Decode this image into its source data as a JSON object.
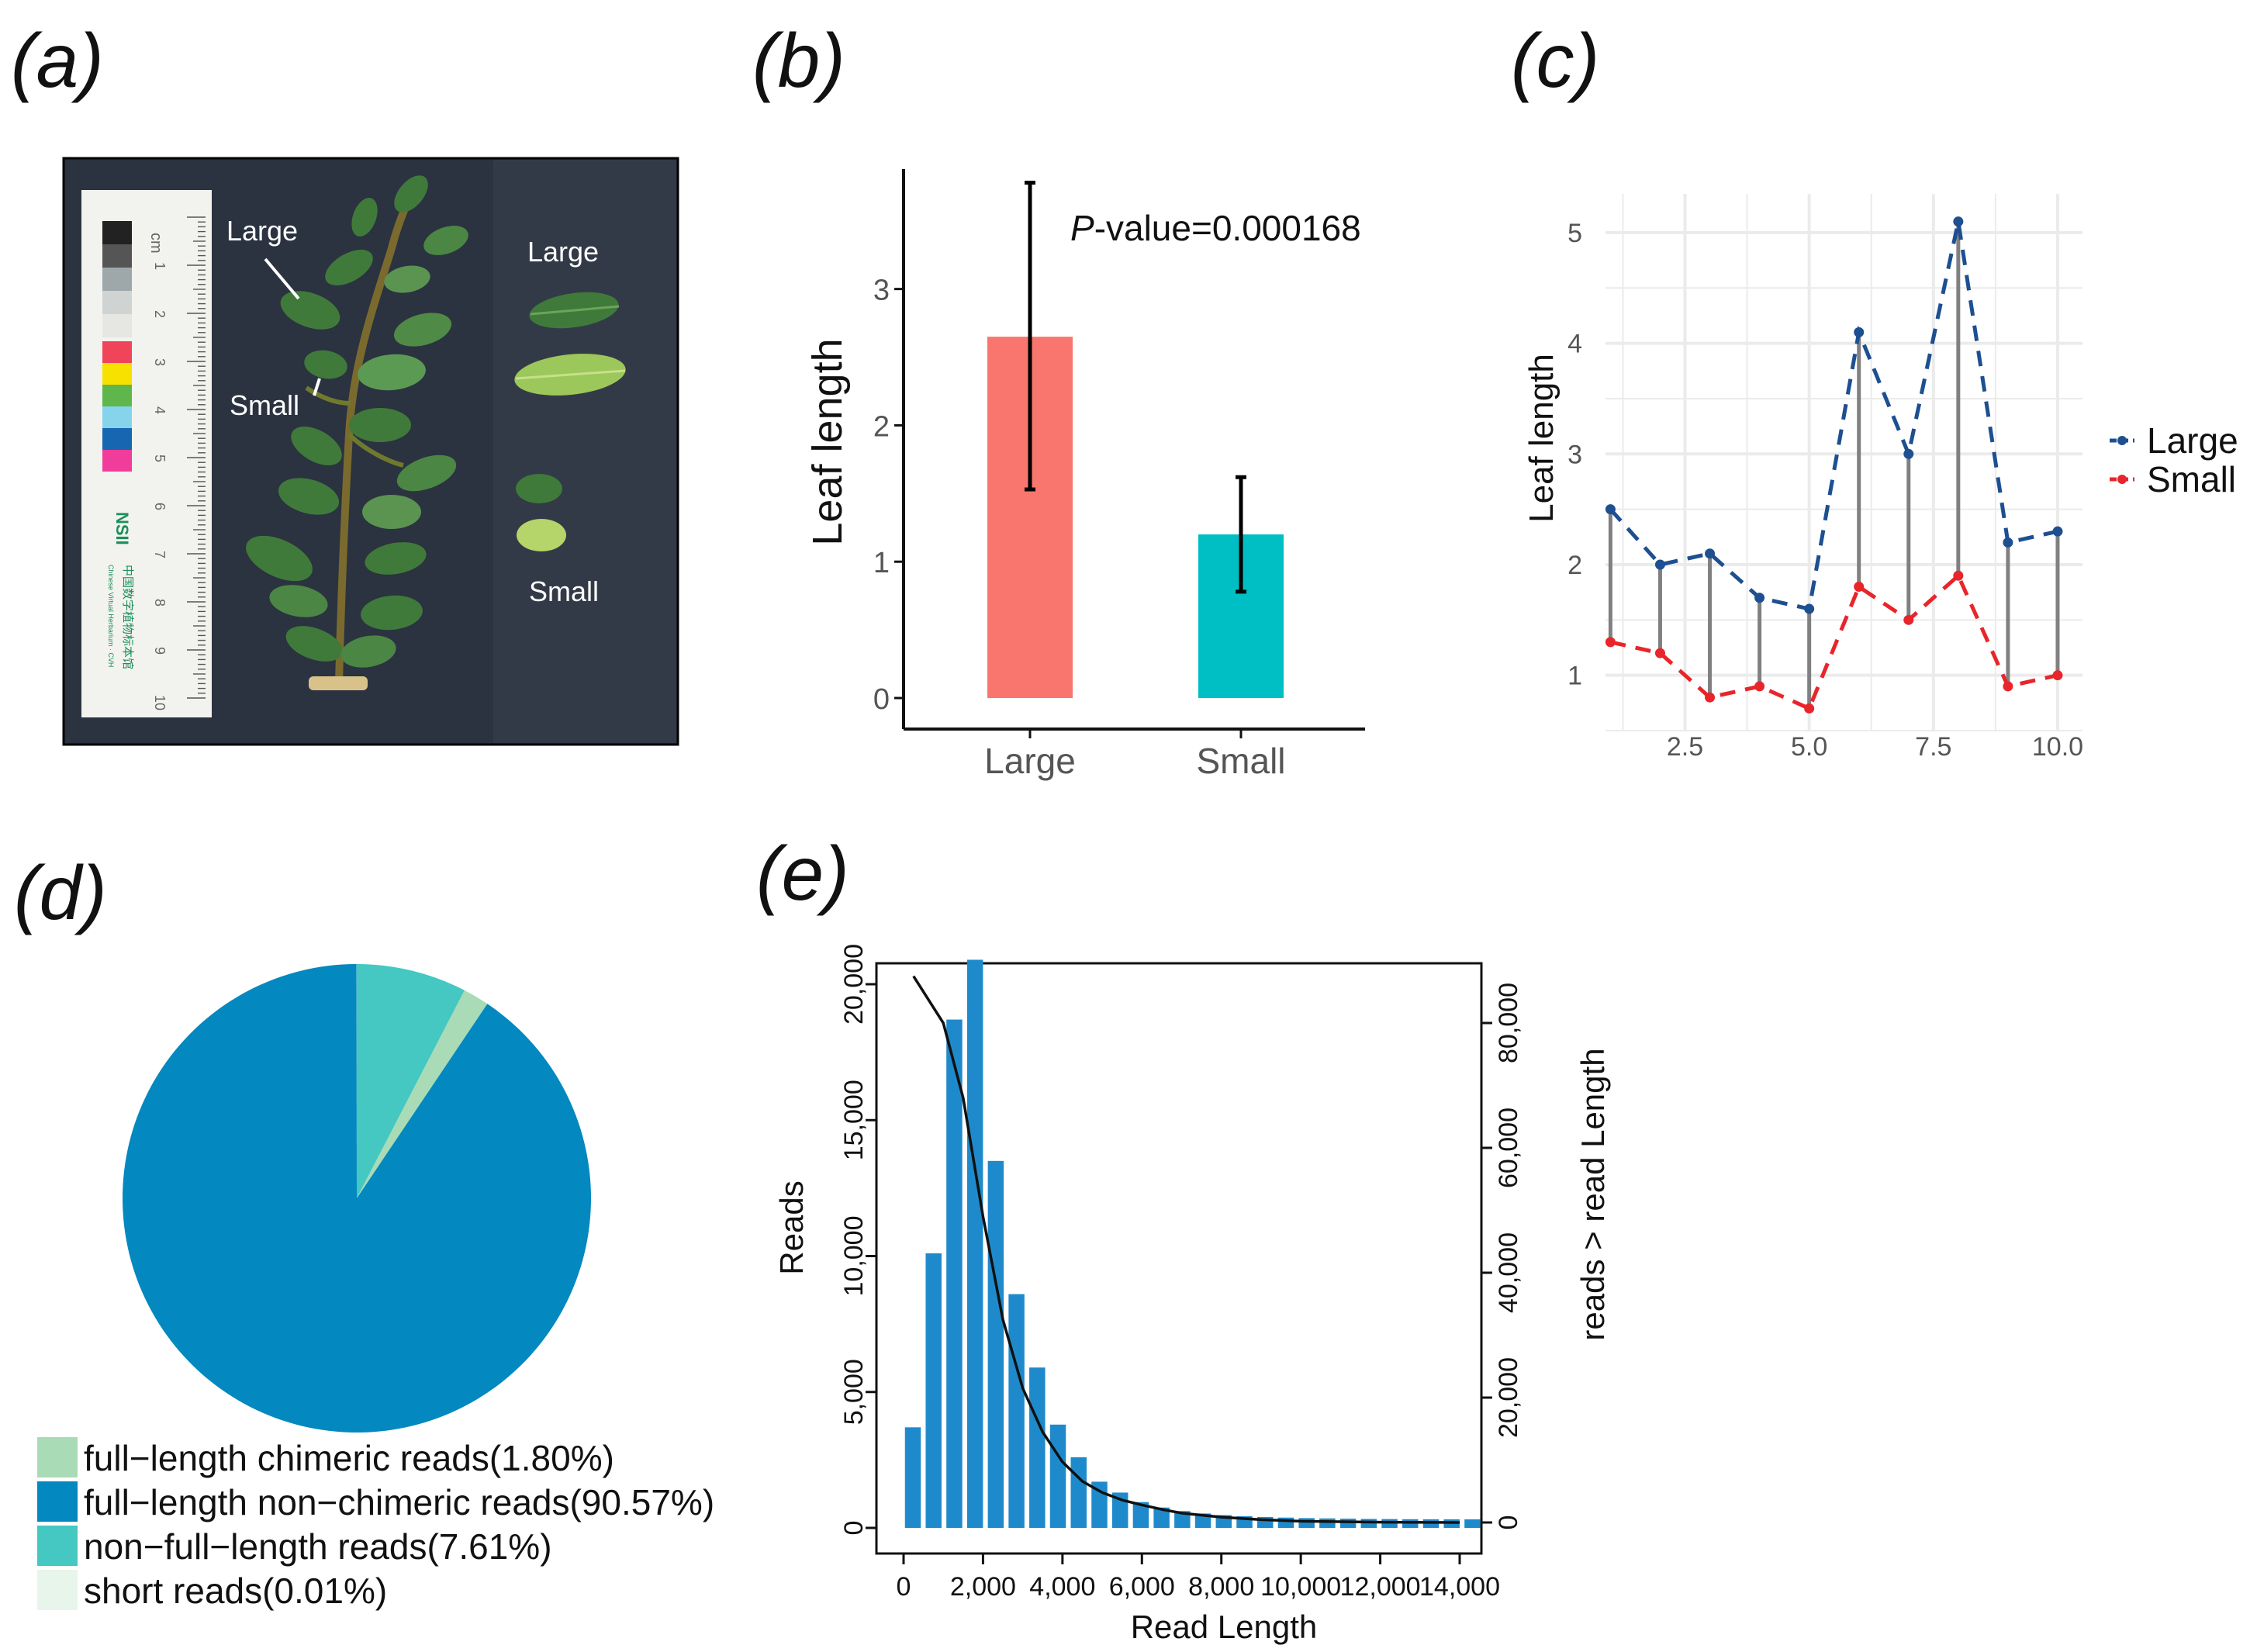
{
  "panel_labels": [
    "(a)",
    "(b)",
    "(c)",
    "(d)",
    "(e)"
  ],
  "photo": {
    "labels": [
      "Large",
      "Small",
      "Large",
      "Small"
    ],
    "ruler_unit": "cm",
    "ruler_numbers": [
      "1",
      "2",
      "3",
      "4",
      "5",
      "6",
      "7",
      "8",
      "9",
      "10"
    ],
    "ruler_logo": "NSII",
    "ruler_text": "中国数字植物标本馆",
    "ruler_subtext": "Chinese Virtual Herbarium · CVH",
    "colors": {
      "background": "#2b3240",
      "leaf": "#3f7a3a",
      "leaf_light": "#9cc75a",
      "stem": "#7a5a2a"
    }
  },
  "chart_data": [
    {
      "id": "b",
      "type": "bar",
      "categories": [
        "Large",
        "Small"
      ],
      "values": [
        2.65,
        1.2
      ],
      "error_low": [
        1.53,
        0.78
      ],
      "error_high": [
        3.78,
        1.62
      ],
      "colors": [
        "#f8766d",
        "#00bfc4"
      ],
      "ylabel": "Leaf length",
      "ylim": [
        0,
        3.95
      ],
      "yticks": [
        "0",
        "1",
        "2",
        "3"
      ],
      "annotation_italic": "P",
      "annotation_rest": "-value=0.000168"
    },
    {
      "id": "c",
      "type": "line",
      "x": [
        1,
        2,
        3,
        4,
        5,
        6,
        7,
        8,
        9,
        10
      ],
      "series": [
        {
          "name": "Large",
          "values": [
            2.5,
            2.0,
            2.1,
            1.7,
            1.6,
            4.1,
            3.0,
            5.1,
            2.2,
            2.3
          ],
          "color": "#1d4f91"
        },
        {
          "name": "Small",
          "values": [
            1.3,
            1.2,
            0.8,
            0.9,
            0.7,
            1.8,
            1.5,
            1.9,
            0.9,
            1.0
          ],
          "color": "#e8252a"
        }
      ],
      "ylabel": "Leaf length",
      "xlim": [
        0.9,
        10.5
      ],
      "ylim": [
        0.5,
        5.35
      ],
      "xticks": [
        "2.5",
        "5.0",
        "7.5",
        "10.0"
      ],
      "yticks": [
        "1",
        "2",
        "3",
        "4",
        "5"
      ],
      "segment_color": "#808080",
      "grid": true
    },
    {
      "id": "d",
      "type": "pie",
      "slices": [
        {
          "label": "non−full−length reads(7.61%)",
          "value": 7.61,
          "color": "#45c7c2"
        },
        {
          "label": "full−length chimeric reads(1.80%)",
          "value": 1.8,
          "color": "#a9dbb6"
        },
        {
          "label": "full−length non−chimeric reads(90.57%)",
          "value": 90.57,
          "color": "#0388bf"
        },
        {
          "label": "short reads(0.01%)",
          "value": 0.01,
          "color": "#e8f5ea"
        }
      ],
      "legend": [
        {
          "label": "full−length chimeric reads(1.80%)",
          "color": "#a9dbb6"
        },
        {
          "label": "full−length non−chimeric reads(90.57%)",
          "color": "#0388bf"
        },
        {
          "label": "non−full−length reads(7.61%)",
          "color": "#45c7c2"
        },
        {
          "label": "short reads(0.01%)",
          "color": "#e8f5ea"
        }
      ]
    },
    {
      "id": "e",
      "type": "bar",
      "bins": [
        500,
        1000,
        1500,
        2000,
        2500,
        3000,
        3500,
        4000,
        4500,
        5000,
        5500,
        6000,
        6500,
        7000,
        7500,
        8000,
        8500,
        9000,
        9500,
        10000,
        10500,
        11000,
        11500,
        12000,
        12500,
        13000,
        13500,
        14000
      ],
      "values": [
        3700,
        10100,
        18700,
        20900,
        13500,
        8600,
        5900,
        3800,
        2600,
        1700,
        1300,
        950,
        750,
        620,
        530,
        470,
        430,
        400,
        380,
        360,
        350,
        340,
        330,
        325,
        320,
        318,
        316,
        315
      ],
      "bar_color": "#1f8acb",
      "xlabel": "Read Length",
      "ylabel": "Reads",
      "ylabel_right": "reads > read Length",
      "xlim": [
        -100,
        14500
      ],
      "ylim": [
        -1000,
        21600
      ],
      "y2lim": [
        -4300,
        92900
      ],
      "xticks": [
        "0",
        "2,000",
        "4,000",
        "6,000",
        "8,000",
        "10,000",
        "12,000",
        "14,000"
      ],
      "yticks": [
        "0",
        "5,000",
        "10,000",
        "15,000",
        "20,000"
      ],
      "y2ticks": [
        "0",
        "20,000",
        "40,000",
        "60,000",
        "80,000"
      ],
      "cumulative": {
        "x": [
          250,
          1000,
          1500,
          2000,
          2500,
          3000,
          3500,
          4000,
          4500,
          5000,
          5500,
          6000,
          6500,
          7000,
          8000,
          9000,
          10000,
          12000,
          14000
        ],
        "y": [
          87500,
          80000,
          68000,
          49000,
          32500,
          21500,
          14500,
          9700,
          6600,
          4800,
          3600,
          2800,
          2100,
          1500,
          850,
          450,
          200,
          40,
          0
        ],
        "color": "#111111"
      }
    }
  ]
}
